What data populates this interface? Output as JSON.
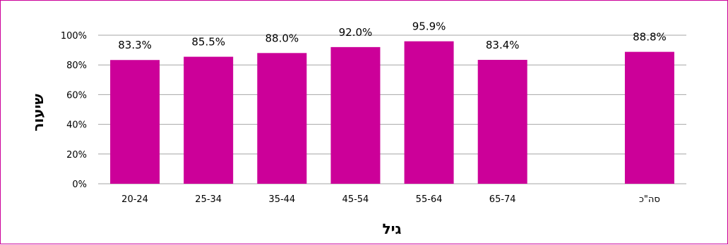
{
  "chart_data": {
    "type": "bar",
    "categories": [
      "20-24",
      "25-34",
      "35-44",
      "45-54",
      "55-64",
      "65-74",
      "",
      "סה\"כ"
    ],
    "values": [
      83.3,
      85.5,
      88.0,
      92.0,
      95.9,
      83.4,
      null,
      88.8
    ],
    "data_labels": [
      "83.3%",
      "85.5%",
      "88.0%",
      "92.0%",
      "95.9%",
      "83.4%",
      "",
      "88.8%"
    ],
    "y_ticks": [
      "0%",
      "20%",
      "40%",
      "60%",
      "80%",
      "100%"
    ],
    "ylim": [
      0,
      100
    ],
    "xlabel": "גיל",
    "ylabel": "שיעור",
    "grid": true,
    "legend": "none",
    "colors": {
      "bar": "#cc0099",
      "border": "#cc0099",
      "grid": "#a6a6a6"
    }
  }
}
